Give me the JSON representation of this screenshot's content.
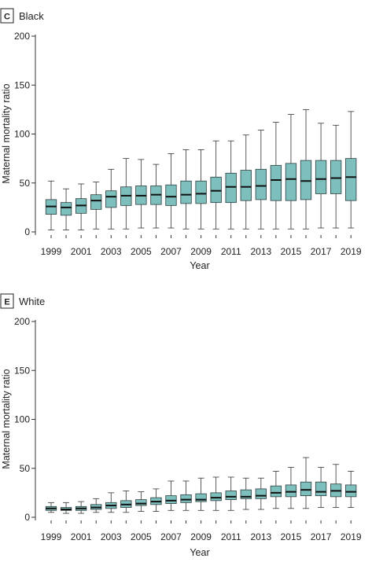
{
  "colors": {
    "box_fill": "#7dbfbd"
  },
  "chart_data": [
    {
      "type": "box",
      "panel_letter": "C",
      "title": "Black",
      "xlabel": "Year",
      "ylabel": "Maternal mortality ratio",
      "ylim": [
        0,
        200
      ],
      "yticks": [
        "0",
        "50",
        "100",
        "150",
        "200"
      ],
      "xtick_labels": [
        "1999",
        "2001",
        "2003",
        "2005",
        "2007",
        "2009",
        "2011",
        "2013",
        "2015",
        "2017",
        "2019"
      ],
      "categories": [
        "1999",
        "2000",
        "2001",
        "2002",
        "2003",
        "2004",
        "2005",
        "2006",
        "2007",
        "2008",
        "2009",
        "2010",
        "2011",
        "2012",
        "2013",
        "2014",
        "2015",
        "2016",
        "2017",
        "2018",
        "2019"
      ],
      "min": [
        2,
        2,
        2,
        3,
        3,
        3,
        4,
        4,
        4,
        3,
        3,
        3,
        3,
        3,
        3,
        3,
        3,
        3,
        4,
        4,
        4
      ],
      "q1": [
        18,
        17,
        19,
        23,
        25,
        27,
        28,
        28,
        27,
        29,
        29,
        30,
        30,
        32,
        33,
        32,
        32,
        33,
        39,
        39,
        32
      ],
      "median": [
        26,
        25,
        27,
        32,
        36,
        37,
        37,
        38,
        36,
        38,
        39,
        42,
        46,
        46,
        47,
        53,
        54,
        52,
        54,
        55,
        56
      ],
      "q3": [
        33,
        30,
        34,
        38,
        42,
        46,
        47,
        47,
        48,
        52,
        52,
        56,
        60,
        63,
        64,
        68,
        70,
        73,
        73,
        73,
        75
      ],
      "max": [
        52,
        44,
        49,
        51,
        64,
        75,
        74,
        69,
        80,
        84,
        84,
        93,
        93,
        99,
        104,
        112,
        120,
        125,
        111,
        109,
        123
      ]
    },
    {
      "type": "box",
      "panel_letter": "E",
      "title": "White",
      "xlabel": "Year",
      "ylabel": "Maternal mortality ratio",
      "ylim": [
        0,
        200
      ],
      "yticks": [
        "0",
        "50",
        "100",
        "150",
        "200"
      ],
      "xtick_labels": [
        "1999",
        "2001",
        "2003",
        "2005",
        "2007",
        "2009",
        "2011",
        "2013",
        "2015",
        "2017",
        "2019"
      ],
      "categories": [
        "1999",
        "2000",
        "2001",
        "2002",
        "2003",
        "2004",
        "2005",
        "2006",
        "2007",
        "2008",
        "2009",
        "2010",
        "2011",
        "2012",
        "2013",
        "2014",
        "2015",
        "2016",
        "2017",
        "2018",
        "2019"
      ],
      "min": [
        5,
        4,
        4,
        5,
        5,
        5,
        6,
        6,
        7,
        7,
        7,
        7,
        7,
        8,
        8,
        9,
        9,
        9,
        10,
        10,
        10
      ],
      "q1": [
        7,
        7,
        7,
        8,
        9,
        10,
        12,
        13,
        14,
        15,
        16,
        17,
        18,
        19,
        19,
        21,
        21,
        22,
        22,
        21,
        21
      ],
      "median": [
        9,
        8,
        9,
        10,
        12,
        13,
        14,
        16,
        17,
        18,
        18,
        20,
        21,
        21,
        22,
        25,
        26,
        28,
        26,
        27,
        26
      ],
      "q3": [
        11,
        10,
        11,
        13,
        15,
        17,
        18,
        20,
        22,
        23,
        24,
        25,
        27,
        28,
        29,
        32,
        33,
        36,
        36,
        34,
        33
      ],
      "max": [
        15,
        15,
        16,
        19,
        25,
        27,
        26,
        29,
        37,
        37,
        40,
        41,
        41,
        40,
        40,
        47,
        51,
        61,
        51,
        54,
        47
      ]
    }
  ]
}
